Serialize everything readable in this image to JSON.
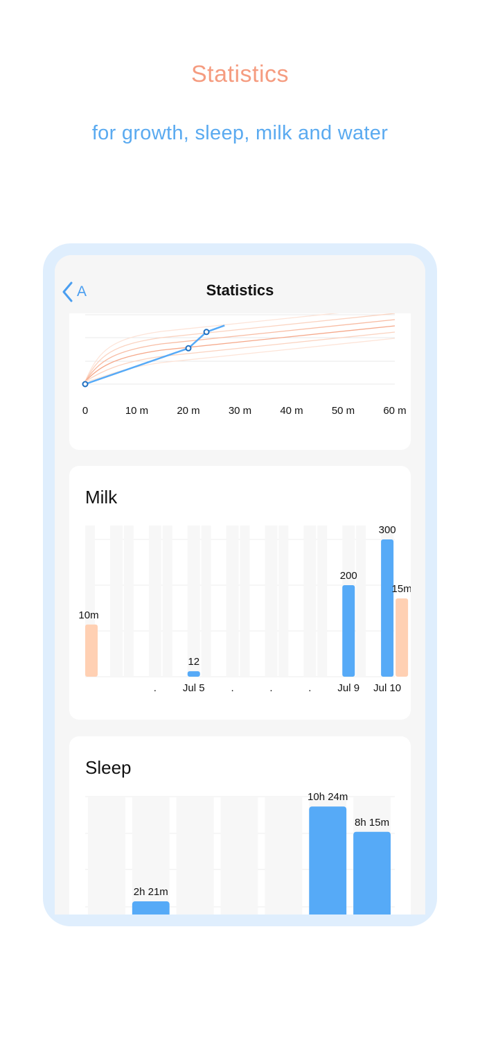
{
  "hero": {
    "title": "Statistics",
    "subtitle": "for growth, sleep, milk and water"
  },
  "screen": {
    "back_label": "A",
    "back_icon": "chevron-left-icon",
    "title": "Statistics"
  },
  "colors": {
    "accent_orange": "#f59c80",
    "accent_blue": "#5aaaf0",
    "bar_blue": "#56aaf7",
    "bar_peach": "#ffd0b3",
    "frame": "#dfeefd"
  },
  "chart_data": [
    {
      "type": "line",
      "x_ticks": [
        "0",
        "10 m",
        "20 m",
        "30 m",
        "40 m",
        "50 m",
        "60 m"
      ],
      "xlim": [
        0,
        60
      ],
      "grid": true,
      "series": [
        {
          "points": [
            [
              0,
              0
            ],
            [
              20,
              22
            ],
            [
              23.5,
              32
            ],
            [
              27,
              36
            ]
          ]
        }
      ],
      "reference_curves": 6
    },
    {
      "type": "bar",
      "title": "Milk",
      "categories": [
        "",
        ".",
        "Jul 5",
        ".",
        ".",
        ".",
        "Jul 9",
        "Jul 10"
      ],
      "ylim": [
        0,
        300
      ],
      "grid": true,
      "series": [
        {
          "color": "#56aaf7",
          "values": [
            0,
            0,
            12,
            0,
            0,
            0,
            200,
            300
          ],
          "labels": [
            "",
            "",
            "12",
            "",
            "",
            "",
            "200",
            "300"
          ]
        },
        {
          "color": "#ffd0b3",
          "values": [
            10,
            0,
            0,
            0,
            0,
            0,
            0,
            15
          ],
          "labels": [
            "10m",
            "",
            "",
            "",
            "",
            "",
            "",
            "15m"
          ],
          "axis_max": 25
        }
      ]
    },
    {
      "type": "bar",
      "title": "Sleep",
      "categories": [
        "",
        "",
        "",
        "",
        "",
        "",
        ""
      ],
      "grid": true,
      "series": [
        {
          "color": "#56aaf7",
          "values": [
            0,
            2.35,
            0,
            0,
            0,
            10.4,
            8.25
          ],
          "labels": [
            "",
            "2h 21m",
            "",
            "",
            "",
            "10h 24m",
            "8h 15m"
          ]
        }
      ]
    }
  ]
}
